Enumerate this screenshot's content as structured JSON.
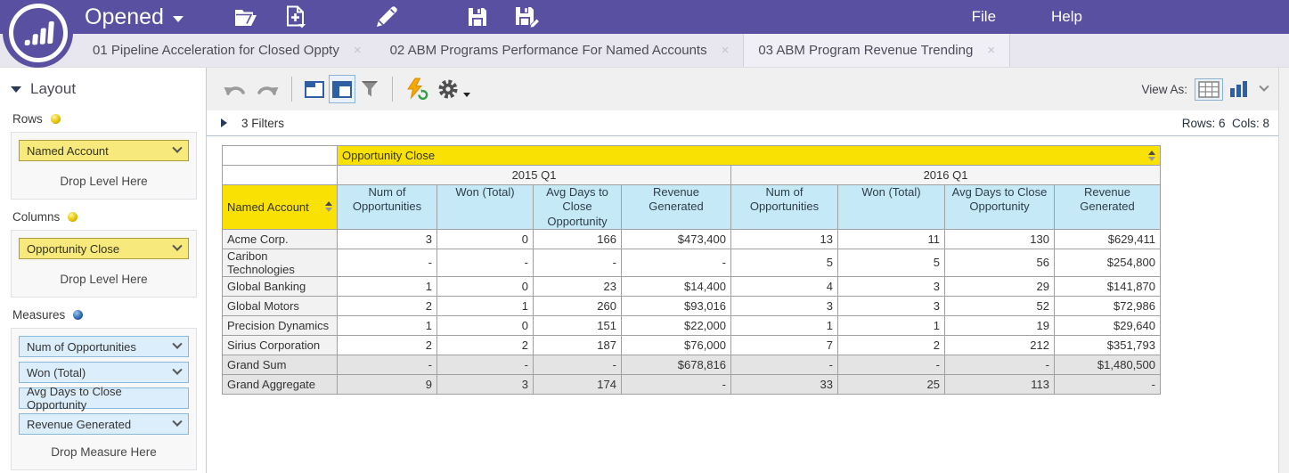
{
  "header": {
    "opened_label": "Opened",
    "file_label": "File",
    "help_label": "Help"
  },
  "tabs": [
    {
      "label": "01 Pipeline Acceleration for Closed Oppty",
      "close": "×",
      "active": false
    },
    {
      "label": "02 ABM Programs Performance For Named Accounts",
      "close": "×",
      "active": false
    },
    {
      "label": "03 ABM Program Revenue Trending",
      "close": "×",
      "active": true
    }
  ],
  "sidebar": {
    "title": "Layout",
    "rows_label": "Rows",
    "rows_field": "Named Account",
    "rows_drop": "Drop Level Here",
    "columns_label": "Columns",
    "columns_field": "Opportunity Close",
    "columns_drop": "Drop Level Here",
    "measures_label": "Measures",
    "measures": [
      {
        "label": "Num of Opportunities",
        "chevron": true
      },
      {
        "label": "Won (Total)",
        "chevron": true
      },
      {
        "label": "Avg Days to Close Opportunity",
        "chevron": false
      },
      {
        "label": "Revenue Generated",
        "chevron": true
      }
    ],
    "measures_drop": "Drop Measure Here"
  },
  "toolbar": {
    "view_as_label": "View As:"
  },
  "filters": {
    "label": "3 Filters",
    "rows_cols": "Rows: 6  Cols: 8"
  },
  "table": {
    "column_dimension": "Opportunity Close",
    "row_dimension": "Named Account",
    "groups": [
      "2015 Q1",
      "2016 Q1"
    ],
    "measure_headers": [
      "Num of Opportunities",
      "Won (Total)",
      "Avg Days to Close Opportunity",
      "Revenue Generated"
    ],
    "rows": [
      {
        "name": "Acme Corp.",
        "type": "data",
        "values": [
          "3",
          "0",
          "166",
          "$473,400",
          "13",
          "11",
          "130",
          "$629,411"
        ]
      },
      {
        "name": "Caribon Technologies",
        "type": "data",
        "values": [
          "-",
          "-",
          "-",
          "-",
          "5",
          "5",
          "56",
          "$254,800"
        ]
      },
      {
        "name": "Global Banking",
        "type": "data",
        "values": [
          "1",
          "0",
          "23",
          "$14,400",
          "4",
          "3",
          "29",
          "$141,870"
        ]
      },
      {
        "name": "Global Motors",
        "type": "data",
        "values": [
          "2",
          "1",
          "260",
          "$93,016",
          "3",
          "3",
          "52",
          "$72,986"
        ]
      },
      {
        "name": "Precision Dynamics",
        "type": "data",
        "values": [
          "1",
          "0",
          "151",
          "$22,000",
          "1",
          "1",
          "19",
          "$29,640"
        ]
      },
      {
        "name": "Sirius Corporation",
        "type": "data",
        "values": [
          "2",
          "2",
          "187",
          "$76,000",
          "7",
          "2",
          "212",
          "$351,793"
        ]
      },
      {
        "name": "Grand Sum",
        "type": "summary",
        "values": [
          "-",
          "-",
          "-",
          "$678,816",
          "-",
          "-",
          "-",
          "$1,480,500"
        ]
      },
      {
        "name": "Grand Aggregate",
        "type": "summary",
        "values": [
          "9",
          "3",
          "174",
          "-",
          "33",
          "25",
          "113",
          "-"
        ]
      }
    ]
  },
  "colors": {
    "brand_purple": "#5a50a2",
    "dimension_yellow": "#f8e103",
    "measure_blue": "#c6e9f8",
    "summary_gray": "#e4e4e4"
  }
}
